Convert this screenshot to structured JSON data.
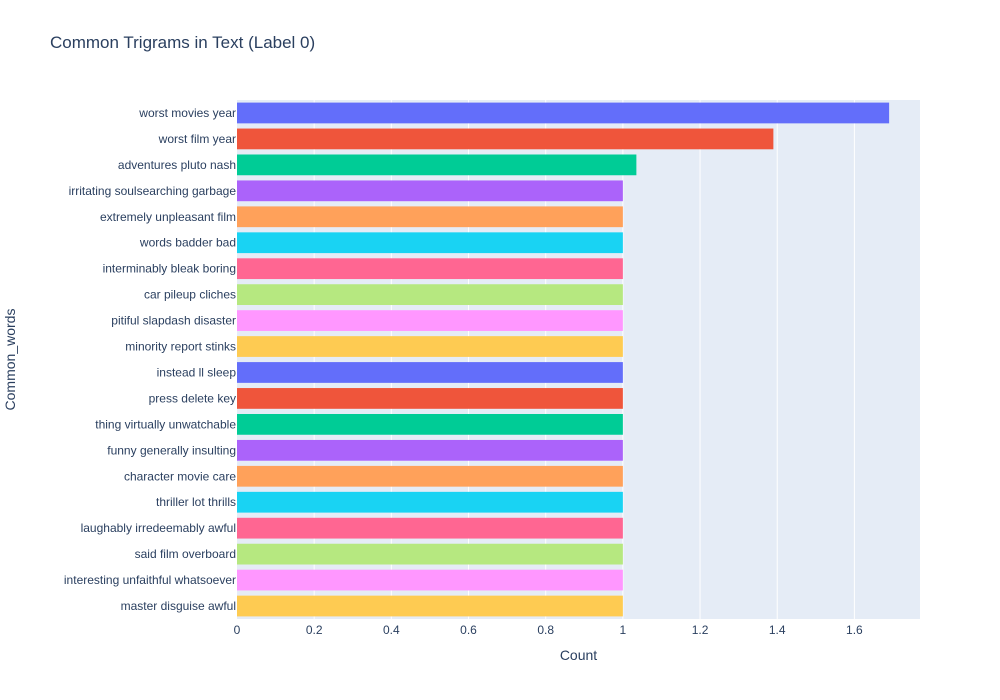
{
  "chart_data": {
    "type": "bar",
    "orientation": "horizontal",
    "title": "Common Trigrams in Text (Label 0)",
    "xlabel": "Count",
    "ylabel": "Common_words",
    "xlim": [
      0,
      1.77
    ],
    "xticks": [
      0,
      0.2,
      0.4,
      0.6,
      0.8,
      1,
      1.2,
      1.4,
      1.6
    ],
    "xtick_labels": [
      "0",
      "0.2",
      "0.4",
      "0.6",
      "0.8",
      "1",
      "1.2",
      "1.4",
      "1.6"
    ],
    "grid": true,
    "legend": "none",
    "categories": [
      "worst movies year",
      "worst film year",
      "adventures pluto nash",
      "irritating soulsearching garbage",
      "extremely unpleasant film",
      "words badder bad",
      "interminably bleak boring",
      "car pileup cliches",
      "pitiful slapdash disaster",
      "minority report stinks",
      "instead ll sleep",
      "press delete key",
      "thing virtually unwatchable",
      "funny generally insulting",
      "character movie care",
      "thriller lot thrills",
      "laughably irredeemably awful",
      "said film overboard",
      "interesting unfaithful whatsoever",
      "master disguise awful"
    ],
    "values": [
      1.69,
      1.39,
      1.035,
      1,
      1,
      1,
      1,
      1,
      1,
      1,
      1,
      1,
      1,
      1,
      1,
      1,
      1,
      1,
      1,
      1
    ],
    "colors": [
      "#636efa",
      "#EF553B",
      "#00cc96",
      "#ab63fa",
      "#FFA15A",
      "#19d3f3",
      "#FF6692",
      "#B6E880",
      "#FF97FF",
      "#FECB52",
      "#636efa",
      "#EF553B",
      "#00cc96",
      "#ab63fa",
      "#FFA15A",
      "#19d3f3",
      "#FF6692",
      "#B6E880",
      "#FF97FF",
      "#FECB52"
    ],
    "plot_background": "#E5ECF6"
  }
}
